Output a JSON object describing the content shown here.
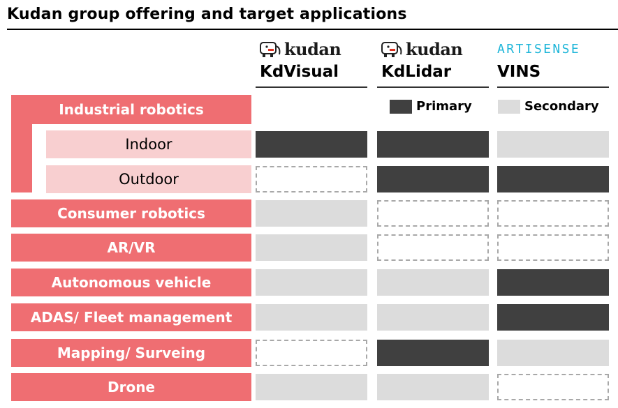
{
  "title": "Kudan group offering and target applications",
  "columns": [
    {
      "key": "kdvisual",
      "brand": "kudan",
      "name": "KdVisual"
    },
    {
      "key": "kdlidar",
      "brand": "kudan",
      "name": "KdLidar"
    },
    {
      "key": "vins",
      "brand": "ARTISENSE",
      "name": "VINS"
    }
  ],
  "legend": {
    "primary": "Primary",
    "secondary": "Secondary"
  },
  "group": {
    "label": "Industrial robotics"
  },
  "rows": [
    {
      "label": "Indoor",
      "sub": true,
      "levels": [
        "primary",
        "primary",
        "secondary"
      ]
    },
    {
      "label": "Outdoor",
      "sub": true,
      "levels": [
        "none",
        "primary",
        "primary"
      ]
    },
    {
      "label": "Consumer robotics",
      "sub": false,
      "levels": [
        "secondary",
        "none",
        "none"
      ]
    },
    {
      "label": "AR/VR",
      "sub": false,
      "levels": [
        "secondary",
        "none",
        "none"
      ]
    },
    {
      "label": "Autonomous vehicle",
      "sub": false,
      "levels": [
        "secondary",
        "secondary",
        "primary"
      ]
    },
    {
      "label": "ADAS/ Fleet management",
      "sub": false,
      "levels": [
        "secondary",
        "secondary",
        "primary"
      ]
    },
    {
      "label": "Mapping/ Surveing",
      "sub": false,
      "levels": [
        "none",
        "primary",
        "secondary"
      ]
    },
    {
      "label": "Drone",
      "sub": false,
      "levels": [
        "secondary",
        "secondary",
        "none"
      ]
    }
  ],
  "colors": {
    "label_bg": "#ef6e72",
    "sub_bg": "#f8cfd0",
    "primary": "#404040",
    "secondary": "#dcdcdc",
    "artisense": "#1fb6d9"
  }
}
